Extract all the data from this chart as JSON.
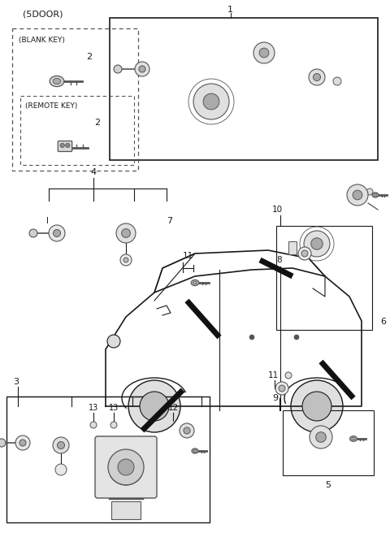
{
  "bg_color": "#ffffff",
  "line_color": "#1a1a1a",
  "dark_gray": "#555555",
  "mid_gray": "#888888",
  "light_gray": "#cccccc",
  "figsize": [
    4.8,
    6.56
  ],
  "dpi": 100,
  "title": "(5DOOR)",
  "label1": "1",
  "label3": "3",
  "label4": "4",
  "label5": "5",
  "label6": "6",
  "label7": "7",
  "label8": "8",
  "label9": "9",
  "label10": "10",
  "label11": "11",
  "label12": "12",
  "label13": "13",
  "label_blank_key": "(BLANK KEY)",
  "label_remote_key": "(REMOTE KEY)",
  "label_2a": "2",
  "label_2b": "2"
}
